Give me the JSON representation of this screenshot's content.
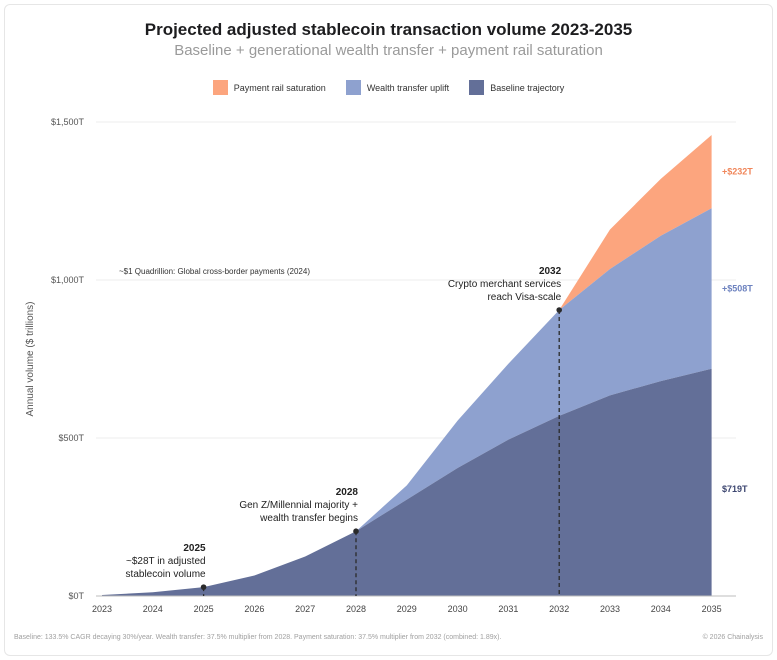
{
  "chart_data": {
    "type": "area",
    "stacked": true,
    "title": "Projected adjusted stablecoin transaction volume 2023-2035",
    "subtitle": "Baseline + generational wealth transfer + payment rail saturation",
    "ylabel": "Annual volume ($ trillions)",
    "xlabel": "",
    "x": [
      "2023",
      "2024",
      "2025",
      "2026",
      "2027",
      "2028",
      "2029",
      "2030",
      "2031",
      "2032",
      "2033",
      "2034",
      "2035"
    ],
    "ylim": [
      0,
      1500
    ],
    "yticks": [
      0,
      500,
      1000,
      1500
    ],
    "ytick_labels": [
      "$0T",
      "$500T",
      "$1,000T",
      "$1,500T"
    ],
    "grid": true,
    "legend_position": "top-center",
    "series": [
      {
        "name": "Payment rail saturation",
        "color": "#fca57e",
        "values": [
          0,
          0,
          0,
          0,
          0,
          0,
          0,
          0,
          0,
          0,
          125,
          180,
          232
        ]
      },
      {
        "name": "Wealth transfer uplift",
        "color": "#8ea1cf",
        "values": [
          0,
          0,
          0,
          0,
          0,
          0,
          45,
          150,
          240,
          335,
          400,
          460,
          508
        ]
      },
      {
        "name": "Baseline trajectory",
        "color": "#636f98",
        "values": [
          3,
          12,
          28,
          65,
          125,
          205,
          305,
          405,
          495,
          570,
          635,
          680,
          719
        ]
      }
    ],
    "end_labels": [
      {
        "text": "+$232T",
        "color": "#f0865a"
      },
      {
        "text": "+$508T",
        "color": "#6d82bf"
      },
      {
        "text": "$719T",
        "color": "#3d4670"
      }
    ],
    "reference_note": {
      "text": "~$1 Quadrillion: Global cross-border payments (2024)",
      "y": 1000
    },
    "annotations": [
      {
        "x": "2025",
        "y": 28,
        "lines": [
          "2025",
          "~$28T in adjusted",
          "stablecoin volume"
        ]
      },
      {
        "x": "2028",
        "y": 205,
        "lines": [
          "2028",
          "Gen Z/Millennial majority +",
          "wealth transfer begins"
        ]
      },
      {
        "x": "2032",
        "y": 905,
        "lines": [
          "2032",
          "Crypto merchant services",
          "reach Visa-scale"
        ]
      }
    ]
  },
  "footer": {
    "note": "Baseline: 133.5% CAGR decaying 30%/year. Wealth transfer: 37.5% multiplier from 2028. Payment saturation: 37.5% multiplier from 2032 (combined: 1.89x).",
    "credit": "© 2026 Chainalysis"
  }
}
